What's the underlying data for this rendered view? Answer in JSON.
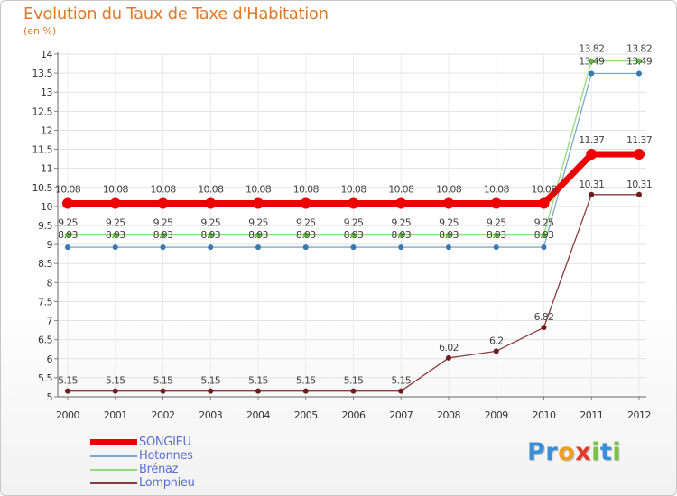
{
  "title": "Evolution du Taux de Taxe d'Habitation",
  "subtitle": "(en %)",
  "logo_letters": [
    {
      "ch": "P",
      "color": "#3a8fd6"
    },
    {
      "ch": "r",
      "color": "#3a8fd6"
    },
    {
      "ch": "o",
      "color": "#f0a020"
    },
    {
      "ch": "x",
      "color": "#e23a2a"
    },
    {
      "ch": "i",
      "color": "#7cc242"
    },
    {
      "ch": "t",
      "color": "#3a8fd6"
    },
    {
      "ch": "i",
      "color": "#7cc242"
    }
  ],
  "chart_data": {
    "type": "line",
    "title": "Evolution du Taux de Taxe d'Habitation",
    "ylabel": "(en %)",
    "xlabel": "",
    "x": [
      "2000",
      "2001",
      "2002",
      "2003",
      "2004",
      "2005",
      "2006",
      "2007",
      "2008",
      "2009",
      "2010",
      "2011",
      "2012"
    ],
    "ylim": [
      5,
      14
    ],
    "yticks": [
      "5",
      "5.5",
      "6",
      "6.5",
      "7",
      "7.5",
      "8",
      "8.5",
      "9",
      "9.5",
      "10",
      "10.5",
      "11",
      "11.5",
      "12",
      "12.5",
      "13",
      "13.5",
      "14"
    ],
    "grid": true,
    "series": [
      {
        "name": "SONGIEU",
        "color": "#ee0000",
        "lineWidth": 7,
        "markerR": 6,
        "values": [
          10.08,
          10.08,
          10.08,
          10.08,
          10.08,
          10.08,
          10.08,
          10.08,
          10.08,
          10.08,
          10.08,
          11.37,
          11.37
        ],
        "labels": [
          "10.08",
          "10.08",
          "10.08",
          "10.08",
          "10.08",
          "10.08",
          "10.08",
          "10.08",
          "10.08",
          "10.08",
          "10.08",
          "11.37",
          "11.37"
        ]
      },
      {
        "name": "Hotonnes",
        "color": "#7fa8c8",
        "markerColor": "#3a78b0",
        "lineWidth": 1.3,
        "markerR": 3,
        "values": [
          8.93,
          8.93,
          8.93,
          8.93,
          8.93,
          8.93,
          8.93,
          8.93,
          8.93,
          8.93,
          8.93,
          13.49,
          13.49
        ],
        "labels": [
          "8.93",
          "8.93",
          "8.93",
          "8.93",
          "8.93",
          "8.93",
          "8.93",
          "8.93",
          "8.93",
          "8.93",
          "8.93",
          "13.49",
          "13.49"
        ]
      },
      {
        "name": "Brénaz",
        "color": "#90dc78",
        "markerColor": "#56c030",
        "lineWidth": 1.3,
        "markerR": 3,
        "values": [
          9.25,
          9.25,
          9.25,
          9.25,
          9.25,
          9.25,
          9.25,
          9.25,
          9.25,
          9.25,
          9.25,
          13.82,
          13.82
        ],
        "labels": [
          "9.25",
          "9.25",
          "9.25",
          "9.25",
          "9.25",
          "9.25",
          "9.25",
          "9.25",
          "9.25",
          "9.25",
          "9.25",
          "13.82",
          "13.82"
        ]
      },
      {
        "name": "Lompnieu",
        "color": "#8a3c3c",
        "markerColor": "#6a1e1e",
        "lineWidth": 1.3,
        "markerR": 3,
        "values": [
          5.15,
          5.15,
          5.15,
          5.15,
          5.15,
          5.15,
          5.15,
          5.15,
          6.02,
          6.2,
          6.82,
          10.31,
          10.31
        ],
        "labels": [
          "5.15",
          "5.15",
          "5.15",
          "5.15",
          "5.15",
          "5.15",
          "5.15",
          "5.15",
          "6.02",
          "6.2",
          "6.82",
          "10.31",
          "10.31"
        ]
      }
    ]
  }
}
